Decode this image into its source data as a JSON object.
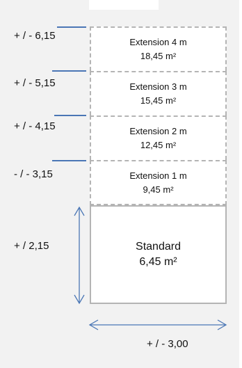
{
  "diagram": {
    "levels": [
      {
        "dimension": "+ / - 6,15",
        "name": "Extension 4 m",
        "area": "18,45 m²"
      },
      {
        "dimension": "+ / - 5,15",
        "name": "Extension 3 m",
        "area": "15,45 m²"
      },
      {
        "dimension": "+ / - 4,15",
        "name": "Extension 2 m",
        "area": "12,45 m²"
      },
      {
        "dimension": "- / - 3,15",
        "name": "Extension 1 m",
        "area": "9,45 m²"
      }
    ],
    "standard": {
      "dimension": "+ / 2,15",
      "name": "Standard",
      "area": "6,45 m²"
    },
    "width_dimension": "+ / - 3,00",
    "colors": {
      "panel_background": "#f2f2f2",
      "box_border": "#b4b4b4",
      "arrow": "#4a76b5",
      "text": "#111111"
    }
  }
}
